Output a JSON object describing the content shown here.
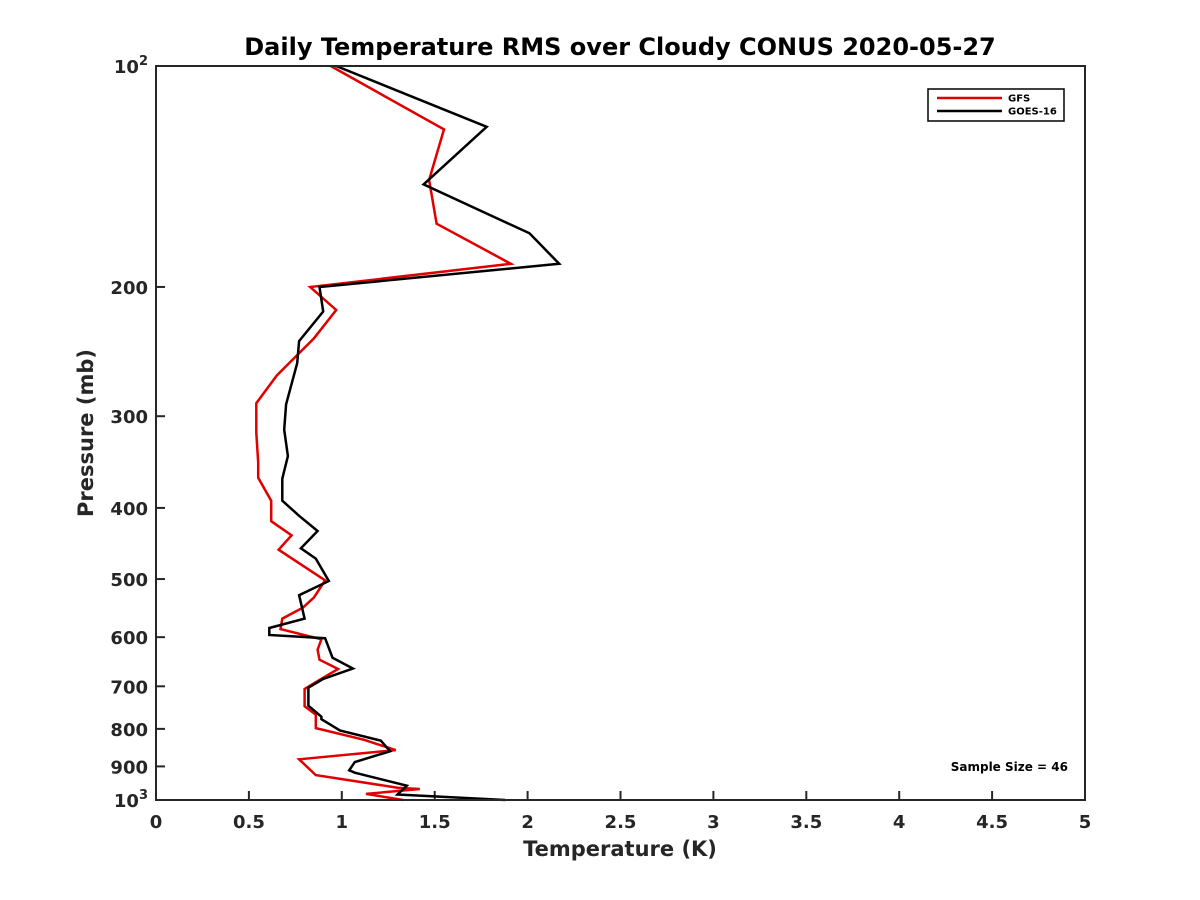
{
  "chart_data": {
    "type": "line",
    "title": "Daily Temperature RMS over Cloudy CONUS 2020-05-27",
    "xlabel": "Temperature (K)",
    "ylabel": "Pressure (mb)",
    "xlim": [
      0,
      5
    ],
    "ylim": [
      100,
      1000
    ],
    "y_scale": "log",
    "y_reversed": true,
    "grid": false,
    "legend_position": "top-right",
    "x_ticks": [
      {
        "value": 0,
        "label": "0"
      },
      {
        "value": 0.5,
        "label": "0.5"
      },
      {
        "value": 1,
        "label": "1"
      },
      {
        "value": 1.5,
        "label": "1.5"
      },
      {
        "value": 2,
        "label": "2"
      },
      {
        "value": 2.5,
        "label": "2.5"
      },
      {
        "value": 3,
        "label": "3"
      },
      {
        "value": 3.5,
        "label": "3.5"
      },
      {
        "value": 4,
        "label": "4"
      },
      {
        "value": 4.5,
        "label": "4.5"
      },
      {
        "value": 5,
        "label": "5"
      }
    ],
    "y_ticks": [
      {
        "value": 100,
        "base": "10",
        "exp": "2"
      },
      {
        "value": 200,
        "label": "200"
      },
      {
        "value": 300,
        "label": "300"
      },
      {
        "value": 400,
        "label": "400"
      },
      {
        "value": 500,
        "label": "500"
      },
      {
        "value": 600,
        "label": "600"
      },
      {
        "value": 700,
        "label": "700"
      },
      {
        "value": 800,
        "label": "800"
      },
      {
        "value": 900,
        "label": "900"
      },
      {
        "value": 1000,
        "base": "10",
        "exp": "3"
      }
    ],
    "series": [
      {
        "name": "GFS",
        "color": "#e00000",
        "x": [
          0.94,
          1.55,
          1.47,
          1.51,
          1.91,
          0.83,
          0.97,
          0.85,
          0.65,
          0.54,
          0.54,
          0.55,
          0.55,
          0.62,
          0.62,
          0.73,
          0.66,
          0.91,
          0.85,
          0.79,
          0.68,
          0.67,
          0.89,
          0.87,
          0.88,
          0.98,
          0.88,
          0.8,
          0.8,
          0.86,
          0.86,
          1.12,
          1.29,
          0.77,
          0.86,
          1.3,
          1.42,
          1.13,
          1.33
        ],
        "y": [
          100,
          122,
          143,
          164,
          186,
          200,
          215,
          235,
          264,
          288,
          316,
          347,
          364,
          391,
          417,
          436,
          456,
          502,
          530,
          547,
          566,
          585,
          604,
          624,
          644,
          663,
          686,
          706,
          745,
          765,
          798,
          828,
          855,
          880,
          925,
          962,
          966,
          981,
          1000
        ]
      },
      {
        "name": "GOES-16",
        "color": "#000000",
        "x": [
          0.97,
          1.78,
          1.44,
          2.01,
          2.17,
          0.88,
          0.9,
          0.77,
          0.76,
          0.7,
          0.69,
          0.71,
          0.68,
          0.68,
          0.77,
          0.87,
          0.78,
          0.86,
          0.93,
          0.77,
          0.8,
          0.61,
          0.61,
          0.91,
          0.95,
          1.06,
          0.9,
          0.82,
          0.82,
          0.89,
          0.89,
          0.99,
          1.21,
          1.26,
          1.07,
          1.04,
          1.07,
          1.35,
          1.3,
          1.88
        ],
        "y": [
          100,
          121,
          145,
          169,
          186,
          200,
          216,
          237,
          254,
          289,
          313,
          340,
          365,
          391,
          410,
          430,
          454,
          469,
          503,
          526,
          566,
          583,
          596,
          602,
          640,
          662,
          684,
          703,
          744,
          770,
          776,
          804,
          830,
          858,
          888,
          911,
          918,
          956,
          983,
          1000
        ]
      }
    ],
    "annotations": [
      {
        "text": "Sample Size = 46",
        "position": "bottom-right"
      }
    ]
  }
}
